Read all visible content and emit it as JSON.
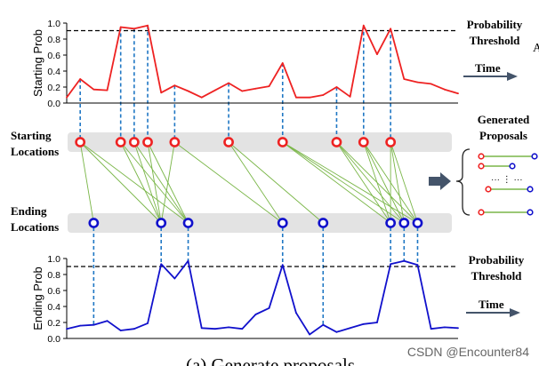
{
  "top_panel": {
    "ylabel": "Starting Prob",
    "y_ticks": [
      "0.0",
      "0.2",
      "0.4",
      "0.6",
      "0.8",
      "1.0"
    ],
    "threshold_label_line1": "Probability",
    "threshold_label_line2": "Threshold",
    "time_label": "Time",
    "cut_letter": "A",
    "line_color": "#ee2222",
    "threshold": 0.9
  },
  "bottom_panel": {
    "ylabel": "Ending Prob",
    "y_ticks": [
      "0.0",
      "0.2",
      "0.4",
      "0.6",
      "0.8",
      "1.0"
    ],
    "threshold_label_line1": "Probability",
    "threshold_label_line2": "Threshold",
    "time_label": "Time",
    "line_color": "#1111cc",
    "threshold": 0.9
  },
  "middle": {
    "starting_line1": "Starting",
    "starting_line2": "Locations",
    "ending_line1": "Ending",
    "ending_line2": "Locations",
    "generated_line1": "Generated",
    "generated_line2": "Proposals",
    "ellipsis": "··· ⋮ ···"
  },
  "caption": "(a) Generate proposals",
  "watermark": "CSDN @Encounter84",
  "colors": {
    "start_marker": "#ee2222",
    "end_marker": "#1111cc",
    "dashed_link": "#1f77c4",
    "match_line": "#7ab648",
    "band": "#e3e3e3",
    "arrow": "#44546a"
  },
  "chart_data": [
    {
      "type": "line",
      "title": "",
      "xlabel": "Time",
      "ylabel": "Starting Prob",
      "ylim": [
        0,
        1
      ],
      "threshold": 0.9,
      "grid": false,
      "x": [
        0,
        1,
        2,
        3,
        4,
        5,
        6,
        7,
        8,
        9,
        10,
        11,
        12,
        13,
        14,
        15,
        16,
        17,
        18,
        19,
        20,
        21,
        22,
        23,
        24,
        25,
        26,
        27,
        28,
        29
      ],
      "values": [
        0.07,
        0.3,
        0.17,
        0.16,
        0.95,
        0.93,
        0.97,
        0.13,
        0.22,
        0.15,
        0.07,
        0.16,
        0.25,
        0.15,
        0.18,
        0.21,
        0.5,
        0.07,
        0.07,
        0.1,
        0.2,
        0.08,
        0.97,
        0.61,
        0.93,
        0.3,
        0.26,
        0.24,
        0.17,
        0.12
      ],
      "selected_locations": [
        1,
        4,
        5,
        6,
        8,
        12,
        16,
        20,
        22,
        24
      ]
    },
    {
      "type": "line",
      "title": "",
      "xlabel": "Time",
      "ylabel": "Ending Prob",
      "ylim": [
        0,
        1
      ],
      "threshold": 0.9,
      "grid": false,
      "x": [
        0,
        1,
        2,
        3,
        4,
        5,
        6,
        7,
        8,
        9,
        10,
        11,
        12,
        13,
        14,
        15,
        16,
        17,
        18,
        19,
        20,
        21,
        22,
        23,
        24,
        25,
        26,
        27,
        28,
        29
      ],
      "values": [
        0.12,
        0.16,
        0.17,
        0.22,
        0.1,
        0.12,
        0.19,
        0.93,
        0.75,
        0.97,
        0.13,
        0.12,
        0.14,
        0.12,
        0.3,
        0.38,
        0.92,
        0.32,
        0.05,
        0.17,
        0.08,
        0.13,
        0.18,
        0.2,
        0.93,
        0.97,
        0.92,
        0.12,
        0.14,
        0.13
      ],
      "selected_locations": [
        2,
        7,
        9,
        16,
        19,
        24,
        25,
        26
      ]
    }
  ],
  "matches": [
    [
      0,
      0
    ],
    [
      0,
      1
    ],
    [
      0,
      2
    ],
    [
      1,
      1
    ],
    [
      1,
      2
    ],
    [
      2,
      1
    ],
    [
      2,
      2
    ],
    [
      3,
      1
    ],
    [
      3,
      2
    ],
    [
      4,
      1
    ],
    [
      4,
      3
    ],
    [
      5,
      3
    ],
    [
      5,
      4
    ],
    [
      6,
      5
    ],
    [
      6,
      6
    ],
    [
      6,
      7
    ],
    [
      7,
      5
    ],
    [
      7,
      6
    ],
    [
      7,
      7
    ],
    [
      8,
      5
    ],
    [
      8,
      6
    ],
    [
      8,
      7
    ],
    [
      9,
      5
    ],
    [
      9,
      6
    ],
    [
      9,
      7
    ]
  ],
  "proposals": [
    {
      "start_color": "#ee2222",
      "end_color": "#1111cc"
    },
    {
      "start_color": "#ee2222",
      "end_color": "#1111cc"
    },
    {
      "start_color": "#ee2222",
      "end_color": "#1111cc"
    },
    {
      "start_color": "#ee2222",
      "end_color": "#1111cc"
    }
  ]
}
